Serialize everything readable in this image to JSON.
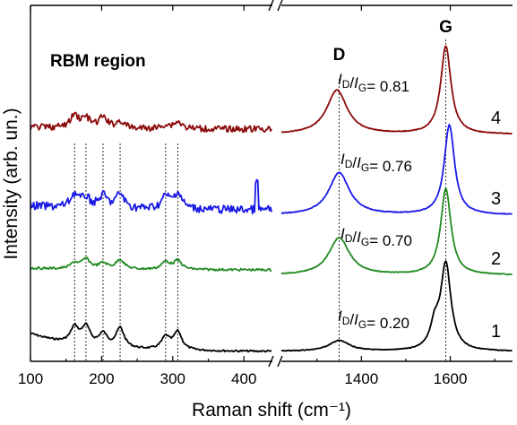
{
  "chart_data": {
    "type": "line",
    "xlabel": "Raman shift (cm⁻¹)",
    "ylabel": "Intensity (arb. un.)",
    "panels": [
      {
        "region": "RBM",
        "title": "RBM region",
        "xlim": [
          100,
          440
        ],
        "xticks": [
          100,
          200,
          300,
          400
        ],
        "guide_lines": [
          162,
          178,
          202,
          226,
          290,
          307
        ],
        "peaks": [
          {
            "x": 162,
            "h": [
              0.45,
              0.55,
              0.5,
              1.0
            ]
          },
          {
            "x": 178,
            "h": [
              0.5,
              0.9,
              0.35,
              0.75
            ]
          },
          {
            "x": 202,
            "h": [
              0.35,
              0.55,
              0.45,
              0.85
            ]
          },
          {
            "x": 226,
            "h": [
              0.55,
              0.9,
              0.55,
              0.55
            ]
          },
          {
            "x": 290,
            "h": [
              0.35,
              0.7,
              0.45,
              0.3
            ]
          },
          {
            "x": 307,
            "h": [
              0.5,
              0.8,
              0.6,
              0.55
            ]
          }
        ]
      },
      {
        "region": "D-G",
        "xlim": [
          1220,
          1740
        ],
        "xticks": [
          1400,
          1600
        ],
        "guide_lines": [
          1350,
          1590
        ],
        "peak_labels": [
          {
            "text": "D",
            "x": 1350
          },
          {
            "text": "G",
            "x": 1590
          }
        ]
      }
    ],
    "series": [
      {
        "name": "1",
        "color": "#000000",
        "ratio": "0.20",
        "D_pos": 1350,
        "G_pos": 1590,
        "D_height": 0.2,
        "G_height": 1.0
      },
      {
        "name": "2",
        "color": "#228B22",
        "ratio": "0.70",
        "D_pos": 1350,
        "G_pos": 1590,
        "D_height": 0.7,
        "G_height": 1.0
      },
      {
        "name": "3",
        "color": "#1A1AE6",
        "ratio": "0.76",
        "D_pos": 1350,
        "G_pos": 1598,
        "D_height": 0.76,
        "G_height": 1.0
      },
      {
        "name": "4",
        "color": "#8B0A0A",
        "ratio": "0.81",
        "D_pos": 1345,
        "G_pos": 1590,
        "D_height": 0.81,
        "G_height": 1.0
      }
    ],
    "ratio_label": {
      "prefix": "I",
      "d_sub": "D",
      "sep": "/",
      "g_sub": "G",
      "equals": "= "
    }
  }
}
